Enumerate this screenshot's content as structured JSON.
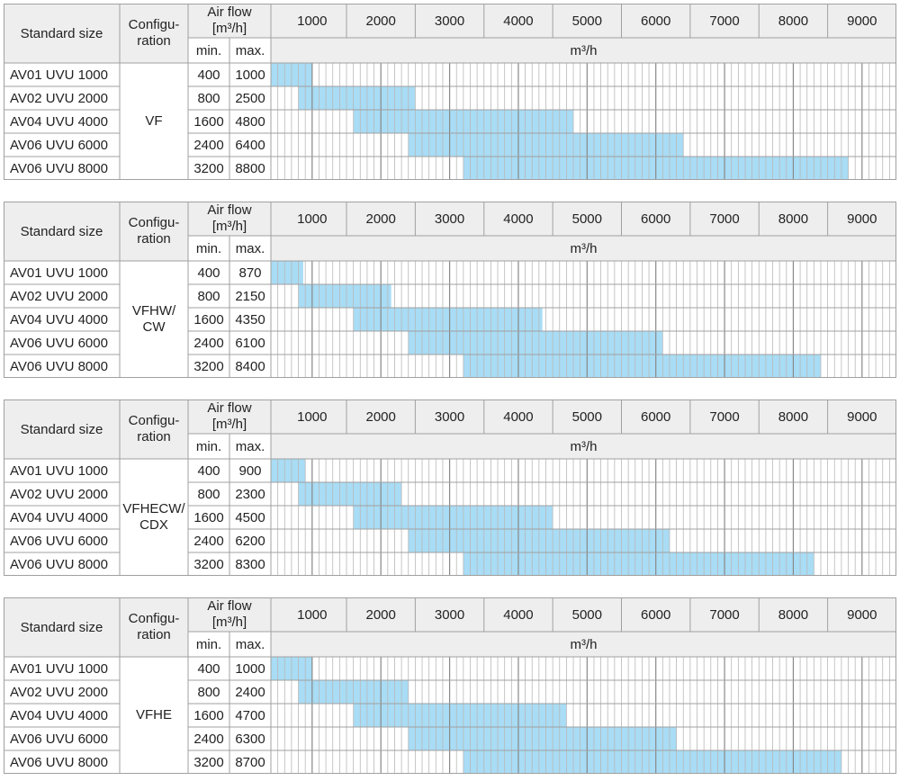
{
  "colors": {
    "header_bg": "#eeeeee",
    "border": "#a0a0a0",
    "grid_line": "#b8b8b8",
    "grid_major": "#888888",
    "bar_fill": "#a9dcf5"
  },
  "headers": {
    "standard_size": "Standard size",
    "configuration_line1": "Configu-",
    "configuration_line2": "ration",
    "air_flow_line1": "Air flow",
    "air_flow_line2": "[m³/h]",
    "min": "min.",
    "max": "max.",
    "unit": "m³/h",
    "scale_ticks": [
      "1000",
      "2000",
      "3000",
      "4000",
      "5000",
      "6000",
      "7000",
      "8000",
      "9000"
    ]
  },
  "tables": [
    {
      "configuration": [
        "VF"
      ],
      "rows": [
        {
          "size": "AV01 UVU 1000",
          "min": "400",
          "max": "1000"
        },
        {
          "size": "AV02 UVU 2000",
          "min": "800",
          "max": "2500"
        },
        {
          "size": "AV04 UVU 4000",
          "min": "1600",
          "max": "4800"
        },
        {
          "size": "AV06 UVU 6000",
          "min": "2400",
          "max": "6400"
        },
        {
          "size": "AV06 UVU 8000",
          "min": "3200",
          "max": "8800"
        }
      ]
    },
    {
      "configuration": [
        "VFHW/",
        "CW"
      ],
      "rows": [
        {
          "size": "AV01 UVU 1000",
          "min": "400",
          "max": "870"
        },
        {
          "size": "AV02 UVU 2000",
          "min": "800",
          "max": "2150"
        },
        {
          "size": "AV04 UVU 4000",
          "min": "1600",
          "max": "4350"
        },
        {
          "size": "AV06 UVU 6000",
          "min": "2400",
          "max": "6100"
        },
        {
          "size": "AV06 UVU 8000",
          "min": "3200",
          "max": "8400"
        }
      ]
    },
    {
      "configuration": [
        "VFHECW/",
        "CDX"
      ],
      "rows": [
        {
          "size": "AV01 UVU 1000",
          "min": "400",
          "max": "900"
        },
        {
          "size": "AV02 UVU 2000",
          "min": "800",
          "max": "2300"
        },
        {
          "size": "AV04 UVU 4000",
          "min": "1600",
          "max": "4500"
        },
        {
          "size": "AV06 UVU 6000",
          "min": "2400",
          "max": "6200"
        },
        {
          "size": "AV06 UVU 8000",
          "min": "3200",
          "max": "8300"
        }
      ]
    },
    {
      "configuration": [
        "VFHE"
      ],
      "rows": [
        {
          "size": "AV01 UVU 1000",
          "min": "400",
          "max": "1000"
        },
        {
          "size": "AV02 UVU 2000",
          "min": "800",
          "max": "2400"
        },
        {
          "size": "AV04 UVU 4000",
          "min": "1600",
          "max": "4700"
        },
        {
          "size": "AV06 UVU 6000",
          "min": "2400",
          "max": "6300"
        },
        {
          "size": "AV06 UVU 8000",
          "min": "3200",
          "max": "8700"
        }
      ]
    }
  ]
}
